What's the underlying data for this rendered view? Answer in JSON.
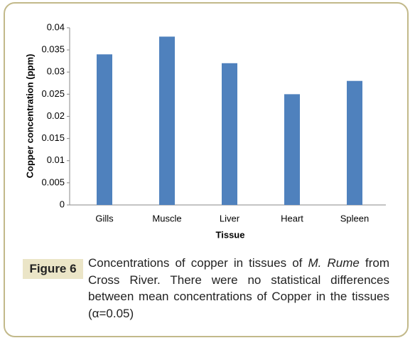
{
  "chart_data": {
    "type": "bar",
    "x_label": "Tissue",
    "y_label": "Copper concentration (ppm)",
    "categories": [
      "Gills",
      "Muscle",
      "Liver",
      "Heart",
      "Spleen"
    ],
    "values": [
      0.034,
      0.038,
      0.032,
      0.025,
      0.028
    ],
    "color": "#4f81bd",
    "ylim": [
      0,
      0.04
    ],
    "yticks": [
      0,
      0.005,
      0.01,
      0.015,
      0.02,
      0.025,
      0.03,
      0.035,
      0.04
    ],
    "grid": false
  },
  "figure": {
    "label": "Figure 6",
    "caption": [
      "Concentrations of copper in tissues of ",
      "M. Rume",
      " from Cross River. There were no statistical differences between mean concentrations of Copper in the tissues (α=0.05)"
    ]
  }
}
